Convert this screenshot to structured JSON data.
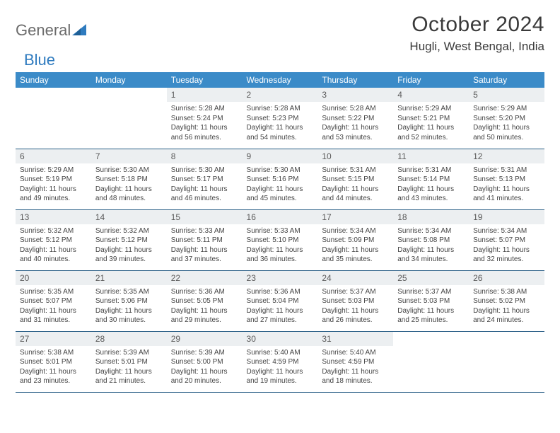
{
  "brand": {
    "part1": "General",
    "part2": "Blue"
  },
  "title": "October 2024",
  "location": "Hugli, West Bengal, India",
  "dayHeaders": [
    "Sunday",
    "Monday",
    "Tuesday",
    "Wednesday",
    "Thursday",
    "Friday",
    "Saturday"
  ],
  "colors": {
    "headerBg": "#3b8bc8",
    "headerText": "#ffffff",
    "dayNumBg": "#eceff1",
    "rowBorder": "#2a5f87",
    "brandGray": "#6b6b6b",
    "brandBlue": "#2f7bbf"
  },
  "startOffset": 2,
  "days": [
    {
      "n": 1,
      "sr": "5:28 AM",
      "ss": "5:24 PM",
      "dl": "11 hours and 56 minutes."
    },
    {
      "n": 2,
      "sr": "5:28 AM",
      "ss": "5:23 PM",
      "dl": "11 hours and 54 minutes."
    },
    {
      "n": 3,
      "sr": "5:28 AM",
      "ss": "5:22 PM",
      "dl": "11 hours and 53 minutes."
    },
    {
      "n": 4,
      "sr": "5:29 AM",
      "ss": "5:21 PM",
      "dl": "11 hours and 52 minutes."
    },
    {
      "n": 5,
      "sr": "5:29 AM",
      "ss": "5:20 PM",
      "dl": "11 hours and 50 minutes."
    },
    {
      "n": 6,
      "sr": "5:29 AM",
      "ss": "5:19 PM",
      "dl": "11 hours and 49 minutes."
    },
    {
      "n": 7,
      "sr": "5:30 AM",
      "ss": "5:18 PM",
      "dl": "11 hours and 48 minutes."
    },
    {
      "n": 8,
      "sr": "5:30 AM",
      "ss": "5:17 PM",
      "dl": "11 hours and 46 minutes."
    },
    {
      "n": 9,
      "sr": "5:30 AM",
      "ss": "5:16 PM",
      "dl": "11 hours and 45 minutes."
    },
    {
      "n": 10,
      "sr": "5:31 AM",
      "ss": "5:15 PM",
      "dl": "11 hours and 44 minutes."
    },
    {
      "n": 11,
      "sr": "5:31 AM",
      "ss": "5:14 PM",
      "dl": "11 hours and 43 minutes."
    },
    {
      "n": 12,
      "sr": "5:31 AM",
      "ss": "5:13 PM",
      "dl": "11 hours and 41 minutes."
    },
    {
      "n": 13,
      "sr": "5:32 AM",
      "ss": "5:12 PM",
      "dl": "11 hours and 40 minutes."
    },
    {
      "n": 14,
      "sr": "5:32 AM",
      "ss": "5:12 PM",
      "dl": "11 hours and 39 minutes."
    },
    {
      "n": 15,
      "sr": "5:33 AM",
      "ss": "5:11 PM",
      "dl": "11 hours and 37 minutes."
    },
    {
      "n": 16,
      "sr": "5:33 AM",
      "ss": "5:10 PM",
      "dl": "11 hours and 36 minutes."
    },
    {
      "n": 17,
      "sr": "5:34 AM",
      "ss": "5:09 PM",
      "dl": "11 hours and 35 minutes."
    },
    {
      "n": 18,
      "sr": "5:34 AM",
      "ss": "5:08 PM",
      "dl": "11 hours and 34 minutes."
    },
    {
      "n": 19,
      "sr": "5:34 AM",
      "ss": "5:07 PM",
      "dl": "11 hours and 32 minutes."
    },
    {
      "n": 20,
      "sr": "5:35 AM",
      "ss": "5:07 PM",
      "dl": "11 hours and 31 minutes."
    },
    {
      "n": 21,
      "sr": "5:35 AM",
      "ss": "5:06 PM",
      "dl": "11 hours and 30 minutes."
    },
    {
      "n": 22,
      "sr": "5:36 AM",
      "ss": "5:05 PM",
      "dl": "11 hours and 29 minutes."
    },
    {
      "n": 23,
      "sr": "5:36 AM",
      "ss": "5:04 PM",
      "dl": "11 hours and 27 minutes."
    },
    {
      "n": 24,
      "sr": "5:37 AM",
      "ss": "5:03 PM",
      "dl": "11 hours and 26 minutes."
    },
    {
      "n": 25,
      "sr": "5:37 AM",
      "ss": "5:03 PM",
      "dl": "11 hours and 25 minutes."
    },
    {
      "n": 26,
      "sr": "5:38 AM",
      "ss": "5:02 PM",
      "dl": "11 hours and 24 minutes."
    },
    {
      "n": 27,
      "sr": "5:38 AM",
      "ss": "5:01 PM",
      "dl": "11 hours and 23 minutes."
    },
    {
      "n": 28,
      "sr": "5:39 AM",
      "ss": "5:01 PM",
      "dl": "11 hours and 21 minutes."
    },
    {
      "n": 29,
      "sr": "5:39 AM",
      "ss": "5:00 PM",
      "dl": "11 hours and 20 minutes."
    },
    {
      "n": 30,
      "sr": "5:40 AM",
      "ss": "4:59 PM",
      "dl": "11 hours and 19 minutes."
    },
    {
      "n": 31,
      "sr": "5:40 AM",
      "ss": "4:59 PM",
      "dl": "11 hours and 18 minutes."
    }
  ],
  "labels": {
    "sunrise": "Sunrise:",
    "sunset": "Sunset:",
    "daylight": "Daylight:"
  }
}
